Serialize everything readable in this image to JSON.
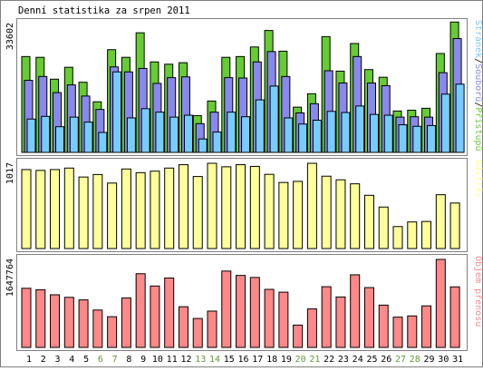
{
  "title": "Denní statistika za srpen 2011",
  "colors": {
    "background": "#ffffff",
    "panel_border": "#808080",
    "hits": "#66cc33",
    "files": "#8888ee",
    "pages": "#77ccff",
    "visits": "#ffff99",
    "kbytes": "#ff8888",
    "weekend_label": "#669933",
    "text": "#000000"
  },
  "chart_data": [
    {
      "type": "bar",
      "name": "hits-files-pages",
      "categories": [
        "1",
        "2",
        "3",
        "4",
        "5",
        "6",
        "7",
        "8",
        "9",
        "10",
        "11",
        "12",
        "13",
        "14",
        "15",
        "16",
        "17",
        "18",
        "19",
        "20",
        "21",
        "22",
        "23",
        "24",
        "25",
        "26",
        "27",
        "28",
        "29",
        "30",
        "31"
      ],
      "weekend_days": [
        "6",
        "7",
        "13",
        "14",
        "20",
        "21",
        "27",
        "28"
      ],
      "ylabel": "33602",
      "ymax": 33602,
      "legend": [
        "Stránek",
        "Souborů",
        "Přístupů"
      ],
      "legend_separator": "/",
      "series": [
        {
          "name": "Přístupů",
          "values": [
            25000,
            24800,
            19100,
            22200,
            18300,
            13200,
            26800,
            24800,
            31200,
            23600,
            23000,
            23400,
            9600,
            13400,
            24800,
            25000,
            27500,
            31800,
            26400,
            11800,
            15300,
            30200,
            21200,
            28400,
            21600,
            19600,
            10800,
            11000,
            11500,
            25800,
            34000
          ]
        },
        {
          "name": "Souborů",
          "values": [
            18800,
            19800,
            15600,
            17600,
            14700,
            11200,
            22300,
            21000,
            21900,
            18000,
            19500,
            19700,
            7500,
            10500,
            19500,
            19400,
            23600,
            26300,
            19800,
            10300,
            12700,
            21300,
            18100,
            25000,
            18100,
            17400,
            9200,
            9300,
            9200,
            20800,
            29700
          ]
        },
        {
          "name": "Stránek",
          "values": [
            8700,
            9400,
            6700,
            9200,
            7900,
            5200,
            21000,
            9000,
            11400,
            10500,
            9200,
            9700,
            3500,
            5300,
            10500,
            9300,
            13700,
            17300,
            9000,
            7400,
            8400,
            10700,
            10400,
            12100,
            9900,
            9700,
            7200,
            6800,
            7000,
            15200,
            17800
          ]
        }
      ]
    },
    {
      "type": "bar",
      "name": "visits",
      "categories": [
        "1",
        "2",
        "3",
        "4",
        "5",
        "6",
        "7",
        "8",
        "9",
        "10",
        "11",
        "12",
        "13",
        "14",
        "15",
        "16",
        "17",
        "18",
        "19",
        "20",
        "21",
        "22",
        "23",
        "24",
        "25",
        "26",
        "27",
        "28",
        "29",
        "30",
        "31"
      ],
      "ylabel": "1017",
      "ymax": 1017,
      "legend": [
        "Návštěv"
      ],
      "series": [
        {
          "name": "Návštěv",
          "values": [
            942,
            932,
            942,
            960,
            853,
            883,
            781,
            949,
            905,
            923,
            960,
            1000,
            859,
            1017,
            975,
            1000,
            980,
            885,
            788,
            801,
            1017,
            863,
            820,
            772,
            635,
            495,
            262,
            317,
            323,
            642,
            543
          ]
        }
      ]
    },
    {
      "type": "bar",
      "name": "kbytes",
      "categories": [
        "1",
        "2",
        "3",
        "4",
        "5",
        "6",
        "7",
        "8",
        "9",
        "10",
        "11",
        "12",
        "13",
        "14",
        "15",
        "16",
        "17",
        "18",
        "19",
        "20",
        "21",
        "22",
        "23",
        "24",
        "25",
        "26",
        "27",
        "28",
        "29",
        "30",
        "31"
      ],
      "ylabel": "1647764",
      "ymax": 1647764,
      "legend": [
        "Objem přenosu"
      ],
      "series": [
        {
          "name": "Objem přenosu",
          "values": [
            1107000,
            1079000,
            986000,
            938000,
            890000,
            700000,
            575000,
            927000,
            1380000,
            1150000,
            1300000,
            762000,
            542000,
            680000,
            1430000,
            1348000,
            1310000,
            1087000,
            1034000,
            418000,
            721000,
            1137000,
            945000,
            1360000,
            1120000,
            792000,
            567000,
            590000,
            778000,
            1647764,
            1134000
          ]
        }
      ]
    }
  ]
}
